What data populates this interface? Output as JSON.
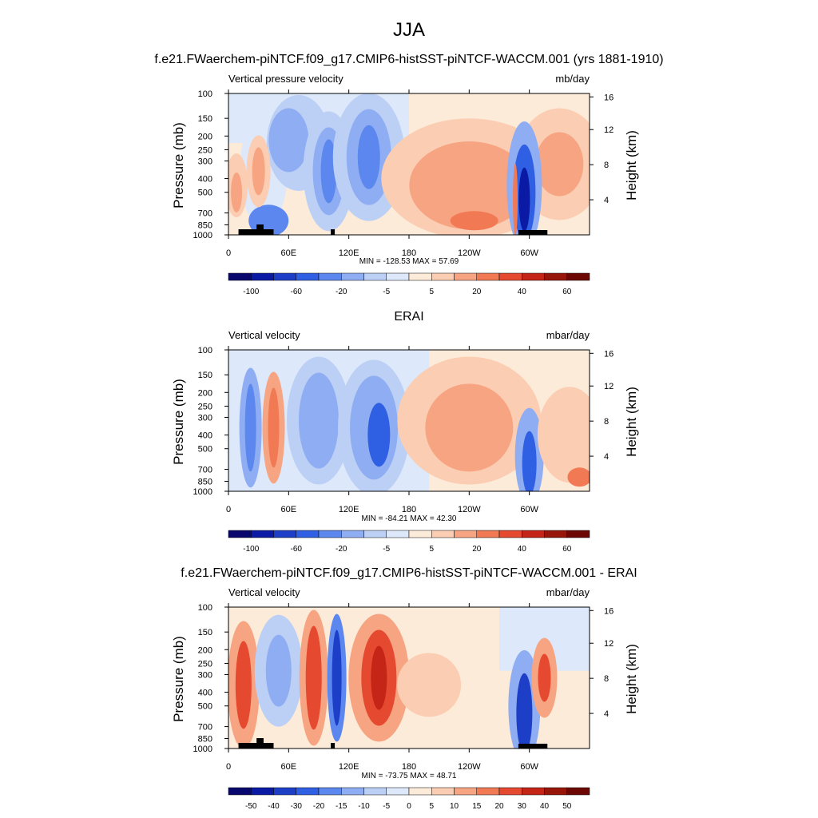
{
  "figure": {
    "season": "JJA",
    "main_title": "f.e21.FWaerchem-piNTCF.f09_g17.CMIP6-histSST-piNTCF-WACCM.001 (yrs 1881-1910)"
  },
  "chart_data": [
    {
      "type": "heatmap",
      "title": "",
      "left_label": "Vertical pressure velocity",
      "units": "mb/day",
      "ylabel": "Pressure (mb)",
      "ylabel_right": "Height (km)",
      "x_ticks": [
        "0",
        "60E",
        "120E",
        "180",
        "120W",
        "60W"
      ],
      "y_ticks": [
        "100",
        "150",
        "200",
        "250",
        "300",
        "400",
        "500",
        "700",
        "850",
        "1000"
      ],
      "y_right_ticks": [
        "16",
        "12",
        "8",
        "4"
      ],
      "stats": "MIN = -128.53  MAX =  57.69",
      "colorbar_labels": [
        "-100",
        "-60",
        "-20",
        "-5",
        "5",
        "20",
        "40",
        "60"
      ],
      "min": -128.53,
      "max": 57.69
    },
    {
      "type": "heatmap",
      "title": "ERAI",
      "left_label": "Vertical velocity",
      "units": "mbar/day",
      "ylabel": "Pressure (mb)",
      "ylabel_right": "Height (km)",
      "x_ticks": [
        "0",
        "60E",
        "120E",
        "180",
        "120W",
        "60W"
      ],
      "y_ticks": [
        "100",
        "150",
        "200",
        "250",
        "300",
        "400",
        "500",
        "700",
        "850",
        "1000"
      ],
      "y_right_ticks": [
        "16",
        "12",
        "8",
        "4"
      ],
      "stats": "MIN = -84.21  MAX =  42.30",
      "colorbar_labels": [
        "-100",
        "-60",
        "-20",
        "-5",
        "5",
        "20",
        "40",
        "60"
      ],
      "min": -84.21,
      "max": 42.3
    },
    {
      "type": "heatmap",
      "title": "f.e21.FWaerchem-piNTCF.f09_g17.CMIP6-histSST-piNTCF-WACCM.001 - ERAI",
      "left_label": "Vertical velocity",
      "units": "mbar/day",
      "ylabel": "Pressure (mb)",
      "ylabel_right": "Height (km)",
      "x_ticks": [
        "0",
        "60E",
        "120E",
        "180",
        "120W",
        "60W"
      ],
      "y_ticks": [
        "100",
        "150",
        "200",
        "250",
        "300",
        "400",
        "500",
        "700",
        "850",
        "1000"
      ],
      "y_right_ticks": [
        "16",
        "12",
        "8",
        "4"
      ],
      "stats": "MIN = -73.75  MAX =  48.71",
      "colorbar_labels": [
        "-50",
        "-40",
        "-30",
        "-20",
        "-15",
        "-10",
        "-5",
        "0",
        "5",
        "10",
        "15",
        "20",
        "30",
        "40",
        "50"
      ],
      "min": -73.75,
      "max": 48.71
    }
  ],
  "colors": {
    "bins": [
      "#08076e",
      "#0b1aa4",
      "#1d3fc8",
      "#2f5fe3",
      "#5b87ee",
      "#8fadf2",
      "#bcd0f6",
      "#dde8fa",
      "#fdebd9",
      "#fbcdb2",
      "#f7a482",
      "#f17a55",
      "#e5492f",
      "#c42516",
      "#981509",
      "#6d0703"
    ]
  }
}
